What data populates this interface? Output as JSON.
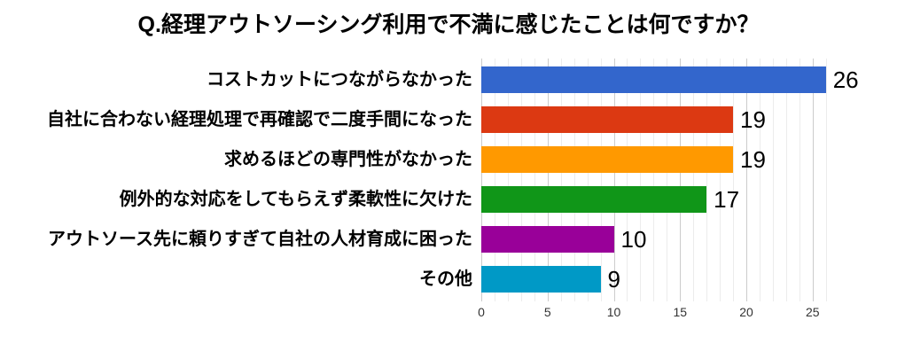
{
  "chart_data": {
    "type": "bar",
    "orientation": "horizontal",
    "title": "Q.経理アウトソーシング利用で不満に感じたことは何ですか？",
    "categories": [
      "コストカットにつながらなかった",
      "自社に合わない経理処理で再確認で二度手間になった",
      "求めるほどの専門性がなかった",
      "例外的な対応をしてもらえず柔軟性に欠けた",
      "アウトソース先に頼りすぎて自社の人材育成に困った",
      "その他"
    ],
    "values": [
      26,
      19,
      19,
      17,
      10,
      9
    ],
    "bar_colors": [
      "#3366cc",
      "#dc3912",
      "#ff9900",
      "#109618",
      "#990099",
      "#0099c6"
    ],
    "xlabel": "",
    "ylabel": "",
    "xlim": [
      0,
      26.5
    ],
    "x_major_ticks": [
      0,
      5,
      10,
      15,
      20,
      25
    ],
    "x_minor_tick_step": 1,
    "grid": true,
    "legend": "none",
    "value_labels_shown": true,
    "colors": {
      "background": "#ffffff",
      "title_text": "#000000",
      "category_text": "#000000",
      "value_text": "#000000",
      "tick_text": "#333333",
      "grid_major": "#cccccc",
      "grid_minor": "#ececec"
    }
  }
}
